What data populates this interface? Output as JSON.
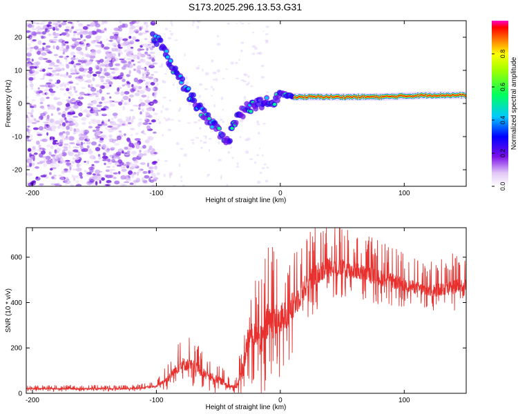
{
  "chart_data": [
    {
      "type": "heatmap",
      "title": "S173.2025.296.13.53.G31",
      "xlabel": "Height of straight line (km)",
      "ylabel": "Frequency (Hz)",
      "xlim": [
        -205,
        150
      ],
      "ylim": [
        -25,
        25
      ],
      "xticks": [
        -200,
        -100,
        0,
        100
      ],
      "yticks": [
        -20,
        -10,
        0,
        10,
        20
      ],
      "colorbar": {
        "label": "Normalized spectral amplitude",
        "range": [
          0,
          1
        ],
        "ticks": [
          "0.0",
          "0.2",
          "0.4",
          "0.6",
          "0.8"
        ],
        "tick_values": [
          0,
          0.2,
          0.4,
          0.6,
          0.8
        ]
      },
      "ridge": [
        {
          "x": -103,
          "y": 21
        },
        {
          "x": -95,
          "y": 17
        },
        {
          "x": -88,
          "y": 12
        },
        {
          "x": -82,
          "y": 8
        },
        {
          "x": -76,
          "y": 4
        },
        {
          "x": -70,
          "y": 1
        },
        {
          "x": -62,
          "y": -3
        },
        {
          "x": -55,
          "y": -6
        },
        {
          "x": -48,
          "y": -9
        },
        {
          "x": -42,
          "y": -12
        },
        {
          "x": -38,
          "y": -6
        },
        {
          "x": -32,
          "y": -3
        },
        {
          "x": -25,
          "y": -1
        },
        {
          "x": -15,
          "y": 0
        },
        {
          "x": -5,
          "y": 1
        },
        {
          "x": 0,
          "y": 3
        },
        {
          "x": 10,
          "y": 2
        },
        {
          "x": 40,
          "y": 2
        },
        {
          "x": 80,
          "y": 2
        },
        {
          "x": 120,
          "y": 2.5
        },
        {
          "x": 150,
          "y": 2.5
        }
      ],
      "noise_region_x": [
        -205,
        -100
      ]
    },
    {
      "type": "line",
      "xlabel": "Height of straight line (km)",
      "ylabel": "SNR (10 * v/v)",
      "xlim": [
        -205,
        150
      ],
      "ylim": [
        0,
        730
      ],
      "xticks": [
        -200,
        -100,
        0,
        100
      ],
      "yticks": [
        0,
        200,
        400,
        600
      ],
      "series": [
        {
          "name": "SNR",
          "color": "#e8312e",
          "envelope_x": [
            -205,
            -120,
            -100,
            -90,
            -80,
            -70,
            -60,
            -50,
            -40,
            -35,
            -30,
            -25,
            -20,
            -15,
            -10,
            0,
            10,
            20,
            30,
            40,
            60,
            80,
            100,
            120,
            130,
            140,
            150
          ],
          "envelope_mean": [
            20,
            20,
            30,
            70,
            130,
            120,
            80,
            60,
            30,
            30,
            110,
            260,
            270,
            220,
            320,
            320,
            380,
            470,
            530,
            560,
            540,
            510,
            480,
            450,
            460,
            470,
            480
          ],
          "envelope_spread": [
            12,
            12,
            15,
            60,
            100,
            90,
            70,
            60,
            25,
            30,
            150,
            250,
            200,
            250,
            280,
            250,
            220,
            180,
            160,
            150,
            130,
            120,
            100,
            90,
            110,
            110,
            90
          ]
        }
      ]
    }
  ]
}
